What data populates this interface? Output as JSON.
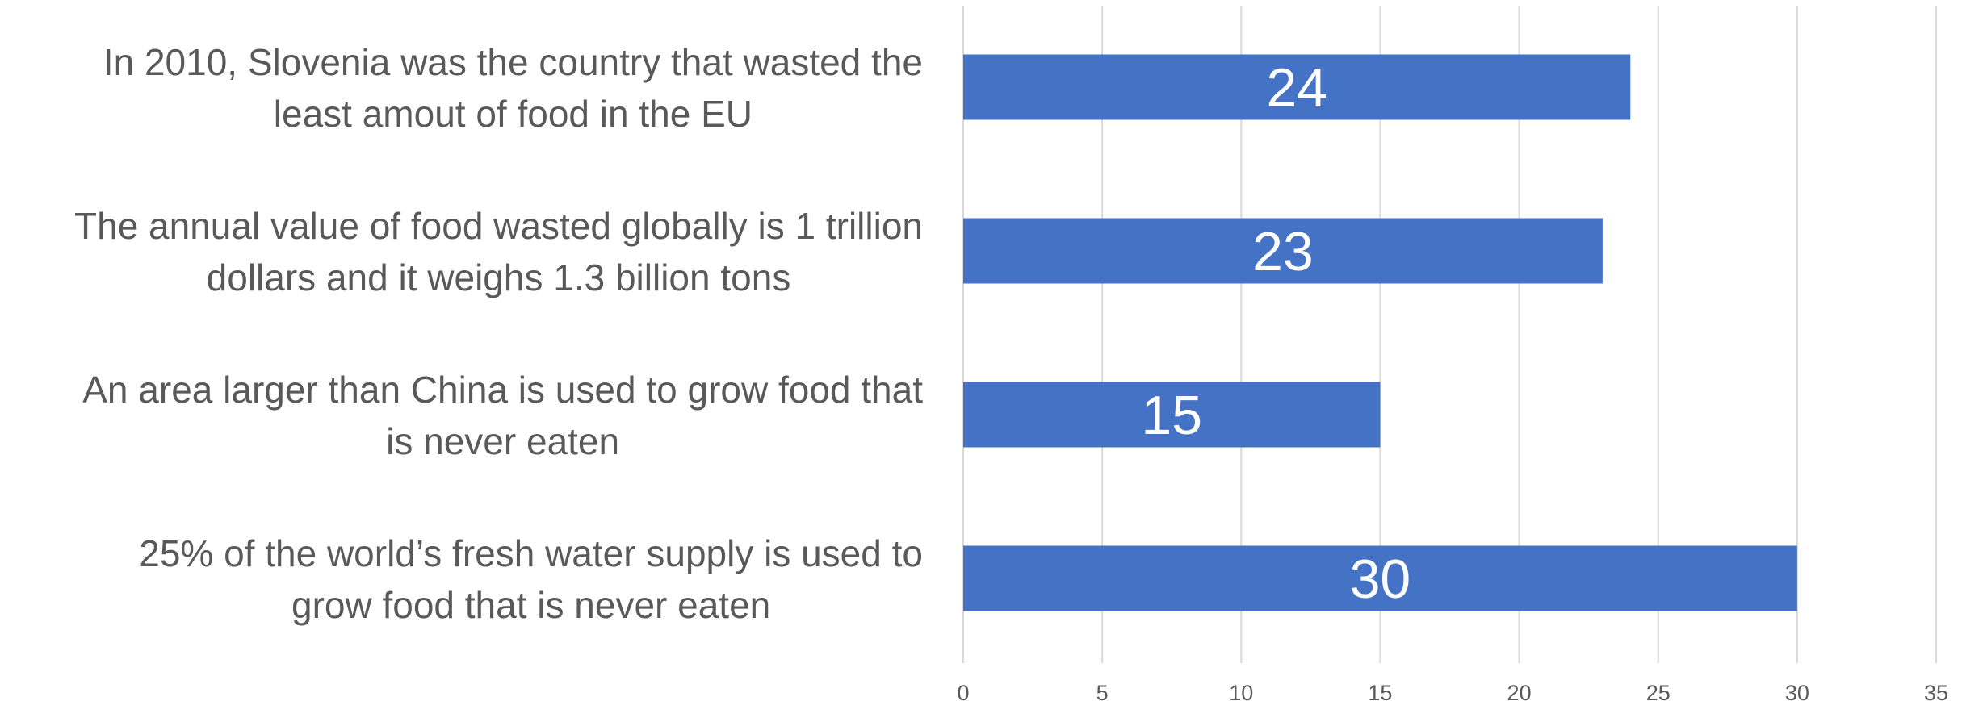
{
  "chart_data": {
    "type": "bar",
    "orientation": "horizontal",
    "categories": [
      "In 2010, Slovenia was the country that wasted the least amout of food in the EU",
      "The annual value of food wasted globally is 1 trillion dollars and it weighs 1.3 billion tons",
      "An area larger than China is used to grow food that is never eaten",
      "25% of the world’s fresh water supply is used to grow food that is never eaten"
    ],
    "category_lines": [
      [
        "In 2010, Slovenia was the country that wasted the",
        "least amout of food in the EU"
      ],
      [
        "The annual value of food wasted globally is 1 trillion",
        "dollars and it weighs 1.3 billion tons"
      ],
      [
        "An area larger than China is used to grow food that",
        "is never eaten"
      ],
      [
        "25% of the world’s fresh water supply is used to",
        "grow food that is never eaten"
      ]
    ],
    "values": [
      24,
      23,
      15,
      30
    ],
    "data_labels": [
      "24",
      "23",
      "15",
      "30"
    ],
    "xlim": [
      0,
      35
    ],
    "x_ticks": [
      "0",
      "5",
      "10",
      "15",
      "20",
      "25",
      "30",
      "35"
    ],
    "grid": true,
    "legend": false,
    "bar_color": "#4472c4",
    "label_color": "#595959",
    "grid_color": "#d9d9d9"
  }
}
